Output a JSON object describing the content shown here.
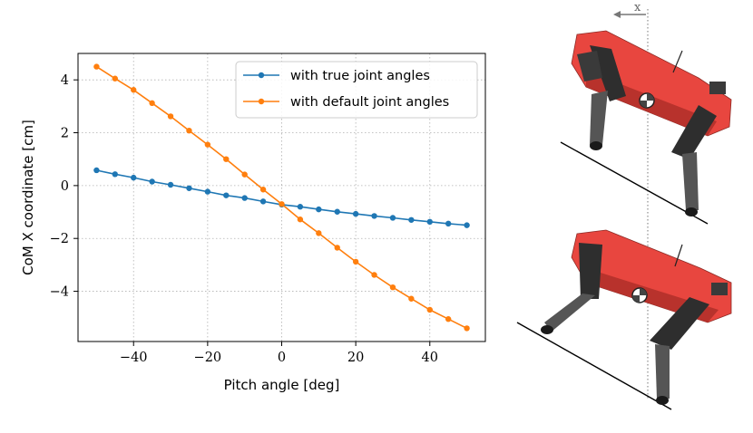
{
  "chart_data": {
    "type": "line",
    "title": "",
    "xlabel": "Pitch angle [deg]",
    "ylabel": "CoM X coordinate [cm]",
    "xlim": [
      -55,
      55
    ],
    "ylim": [
      -5.9,
      5.0
    ],
    "xticks": [
      -40,
      -20,
      0,
      20,
      40
    ],
    "yticks": [
      -4,
      -2,
      0,
      2,
      4
    ],
    "grid": true,
    "legend": "top-right",
    "x": [
      -50,
      -45,
      -40,
      -35,
      -30,
      -25,
      -20,
      -15,
      -10,
      -5,
      0,
      5,
      10,
      15,
      20,
      25,
      30,
      35,
      40,
      45,
      50
    ],
    "series": [
      {
        "name": "with true joint angles",
        "color": "#1f77b4",
        "values": [
          0.58,
          0.43,
          0.3,
          0.15,
          0.03,
          -0.1,
          -0.23,
          -0.37,
          -0.47,
          -0.6,
          -0.72,
          -0.8,
          -0.9,
          -0.99,
          -1.07,
          -1.15,
          -1.22,
          -1.3,
          -1.37,
          -1.44,
          -1.5
        ]
      },
      {
        "name": "with default joint angles",
        "color": "#ff7f0e",
        "values": [
          4.5,
          4.05,
          3.62,
          3.12,
          2.62,
          2.08,
          1.55,
          1.0,
          0.42,
          -0.15,
          -0.7,
          -1.28,
          -1.8,
          -2.35,
          -2.88,
          -3.38,
          -3.85,
          -4.28,
          -4.7,
          -5.05,
          -5.4
        ]
      }
    ]
  },
  "illustration": {
    "axis_label": "x",
    "robot_color": "#e8463f",
    "robot_dark": "#2e2e2e"
  }
}
